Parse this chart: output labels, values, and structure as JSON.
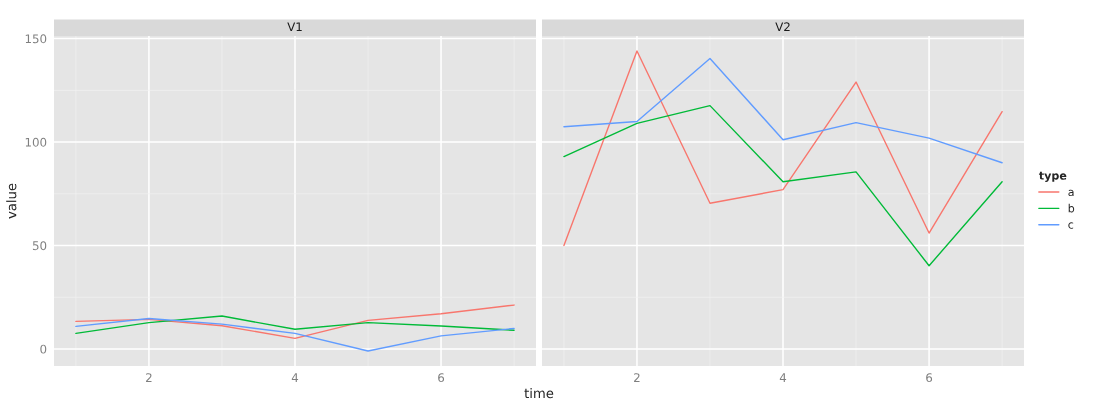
{
  "chart_data": [
    {
      "type": "line",
      "title": "V1",
      "xlabel": "time",
      "ylabel": "value",
      "x": [
        1,
        2,
        3,
        4,
        5,
        6,
        7
      ],
      "legend_title": "type",
      "legend": "right",
      "series": [
        {
          "name": "a",
          "color": "#f8766d",
          "values": [
            13.3,
            14.3,
            11.2,
            5.1,
            13.8,
            17,
            21.2
          ]
        },
        {
          "name": "b",
          "color": "#00ba38",
          "values": [
            7.5,
            12.7,
            15.9,
            9.5,
            12.7,
            11.1,
            9
          ]
        },
        {
          "name": "c",
          "color": "#619cff",
          "values": [
            10.9,
            14.7,
            12,
            7.5,
            -1,
            6.3,
            9.9
          ]
        }
      ],
      "xlim": [
        0.7,
        7.3
      ],
      "xticks": [
        2,
        4,
        6
      ],
      "ylim": [
        -8.25,
        151.25
      ],
      "yticks": [
        0,
        50,
        100,
        150
      ],
      "grid": true
    },
    {
      "type": "line",
      "title": "V2",
      "x": [
        1,
        2,
        3,
        4,
        5,
        6,
        7
      ],
      "series": [
        {
          "color": "#f8766d",
          "values": [
            50,
            144,
            70.4,
            77,
            129,
            56,
            114.7
          ]
        },
        {
          "color": "#00ba38",
          "values": [
            93,
            109,
            117.6,
            80.8,
            85.6,
            40.2,
            80.8
          ]
        },
        {
          "color": "#619cff",
          "values": [
            107.4,
            109.9,
            140.4,
            101.1,
            109.4,
            101.9,
            90
          ]
        }
      ],
      "xlim": [
        0.7,
        7.3
      ],
      "xticks": [
        2,
        4,
        6
      ],
      "ylim": [
        -8.25,
        151.25
      ],
      "yticks": [
        0,
        50,
        100,
        150
      ],
      "grid": true,
      "tick_labels": "x"
    }
  ]
}
